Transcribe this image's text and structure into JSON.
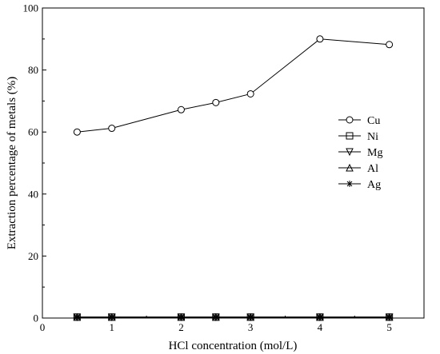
{
  "chart_data": {
    "type": "line",
    "title": "",
    "xlabel": "HCl concentration (mol/L)",
    "ylabel": "Extraction percentage of metals (%)",
    "xlim": [
      0,
      5.5
    ],
    "ylim": [
      0,
      100
    ],
    "x_ticks": [
      0,
      1,
      2,
      3,
      4,
      5
    ],
    "y_ticks": [
      0,
      20,
      40,
      60,
      80,
      100
    ],
    "x": [
      0.5,
      1,
      2,
      2.5,
      3,
      4,
      5
    ],
    "legend_position": "right",
    "series": [
      {
        "name": "Cu",
        "marker": "circle",
        "values": [
          60.0,
          61.2,
          67.2,
          69.5,
          72.3,
          90.0,
          88.2
        ]
      },
      {
        "name": "Ni",
        "marker": "square",
        "values": [
          0.3,
          0.3,
          0.3,
          0.3,
          0.3,
          0.3,
          0.3
        ]
      },
      {
        "name": "Mg",
        "marker": "triangle-down",
        "values": [
          0.3,
          0.3,
          0.3,
          0.3,
          0.3,
          0.3,
          0.3
        ]
      },
      {
        "name": "Al",
        "marker": "triangle-up",
        "values": [
          0.3,
          0.3,
          0.3,
          0.3,
          0.3,
          0.3,
          0.3
        ]
      },
      {
        "name": "Ag",
        "marker": "asterisk",
        "values": [
          0.3,
          0.3,
          0.3,
          0.3,
          0.3,
          0.3,
          0.3
        ]
      }
    ]
  }
}
